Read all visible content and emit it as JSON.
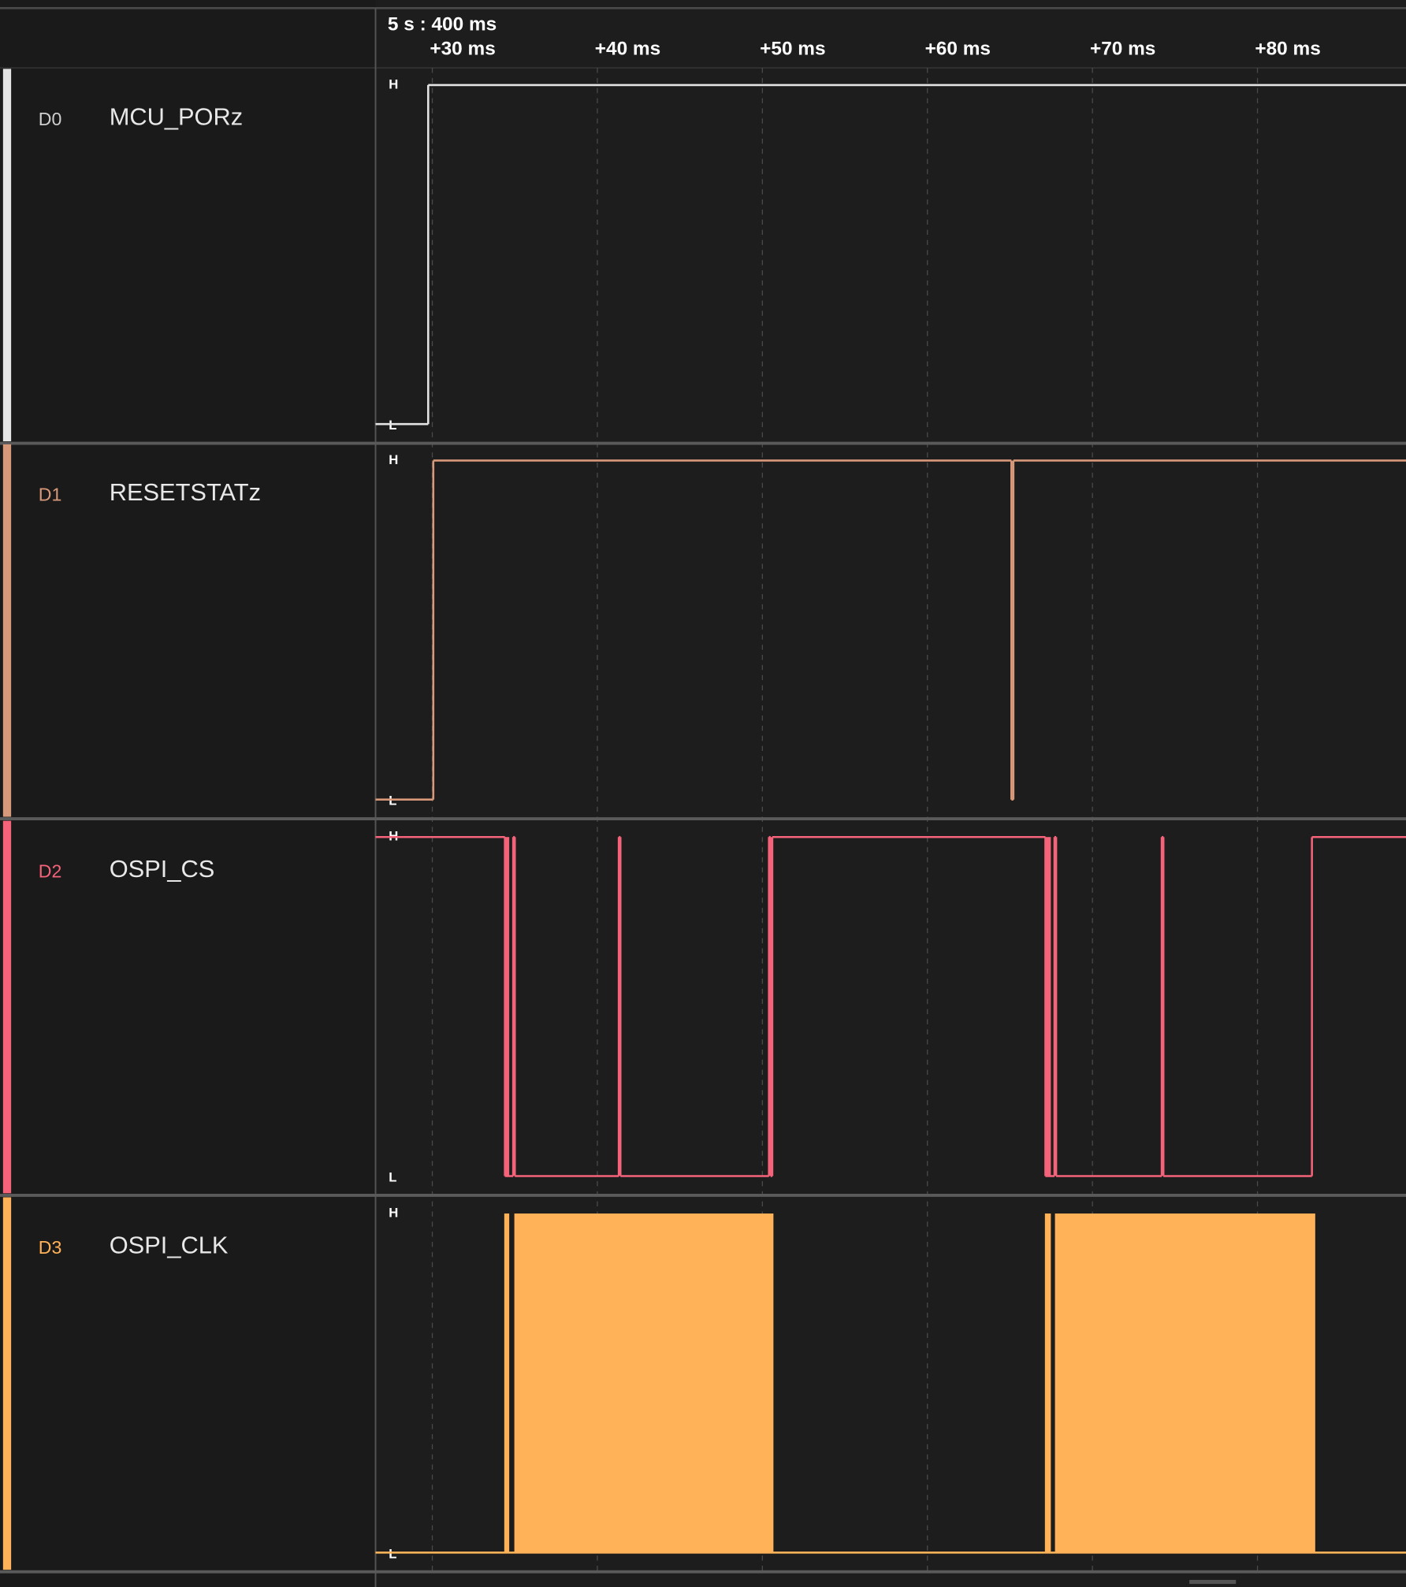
{
  "header": {
    "time_origin": "5 s : 400 ms"
  },
  "axis": {
    "xlim": [
      26.56,
      89.0
    ],
    "ticks": [
      {
        "value": 30,
        "label": "+30 ms"
      },
      {
        "value": 40,
        "label": "+40 ms"
      },
      {
        "value": 50,
        "label": "+50 ms"
      },
      {
        "value": 60,
        "label": "+60 ms"
      },
      {
        "value": 70,
        "label": "+70 ms"
      },
      {
        "value": 80,
        "label": "+80 ms"
      }
    ]
  },
  "level_labels": {
    "high": "H",
    "low": "L"
  },
  "channels": [
    {
      "code": "D0",
      "name": "MCU_PORz",
      "color": "#e4e4e4",
      "start_level": 0,
      "edges": [
        29.75
      ],
      "bursts": []
    },
    {
      "code": "D1",
      "name": "RESETSTATz",
      "color": "#d8987a",
      "start_level": 0,
      "edges": [
        30.06,
        65.09,
        65.21
      ],
      "bursts": []
    },
    {
      "code": "D2",
      "name": "OSPI_CS",
      "color": "#f4637a",
      "start_level": 1,
      "edges": [
        34.4,
        34.9,
        35.0,
        41.3,
        41.4,
        50.4,
        50.5,
        50.6,
        67.15,
        67.7,
        67.8,
        74.2,
        74.3,
        83.3
      ],
      "bursts": [
        [
          34.36,
          34.66
        ],
        [
          67.12,
          67.48
        ]
      ]
    },
    {
      "code": "D3",
      "name": "OSPI_CLK",
      "color": "#ffb257",
      "start_level": 0,
      "edges": [],
      "bursts": [
        [
          34.36,
          34.66
        ],
        [
          34.97,
          50.67
        ],
        [
          67.12,
          67.48
        ],
        [
          67.73,
          83.5
        ]
      ]
    }
  ]
}
